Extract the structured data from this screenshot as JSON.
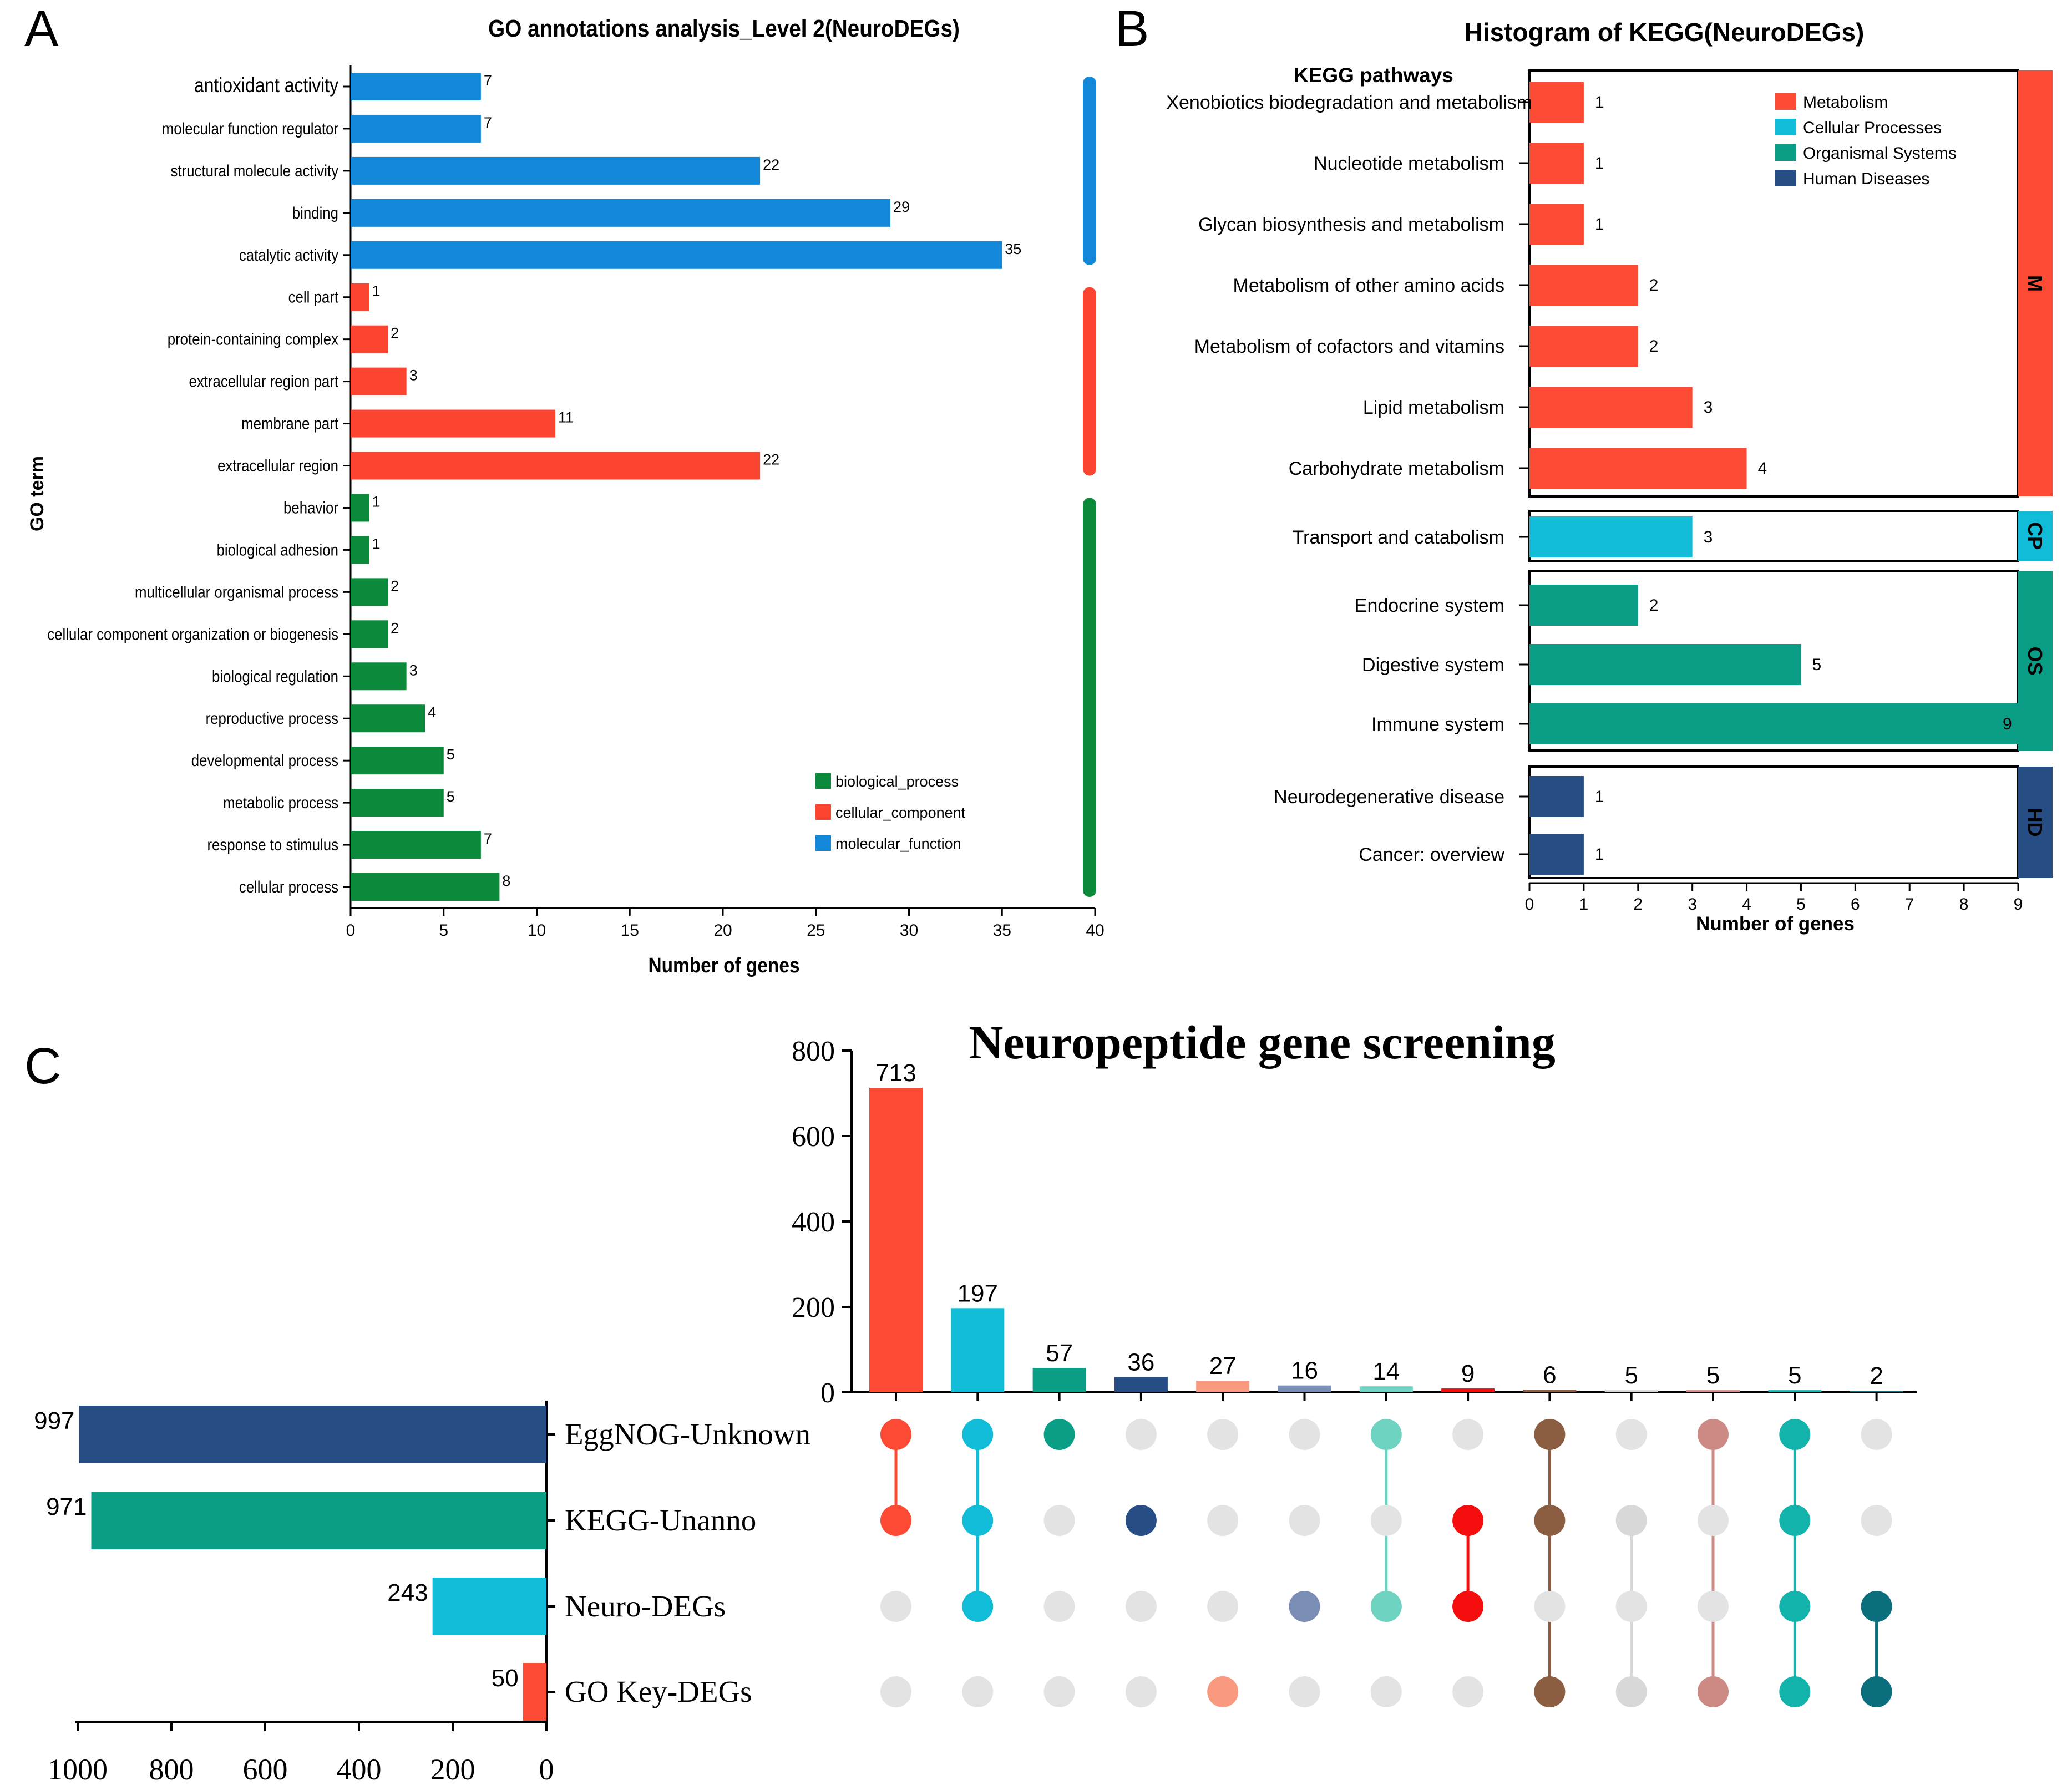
{
  "panel_letters": {
    "a": "A",
    "b": "B",
    "c": "C"
  },
  "colors": {
    "mf": "#1488d8",
    "cc": "#fc4530",
    "bp": "#0a8a3a",
    "metab": "#fc4a34",
    "cp": "#11bcd9",
    "os": "#0b9e86",
    "hd": "#264e85",
    "axis": "#000000",
    "dot_inactive": "#e3e3e3"
  },
  "chart_data": [
    {
      "id": "go",
      "type": "bar",
      "orientation": "horizontal",
      "title": "GO annotations analysis_Level 2(NeuroDEGs)",
      "xlabel": "Number of genes",
      "ylabel": "GO term",
      "xlim": [
        0,
        40
      ],
      "xticks": [
        0,
        5,
        10,
        15,
        20,
        25,
        30,
        35,
        40
      ],
      "categories": [
        "antioxidant activity",
        "molecular function regulator",
        "structural molecule activity",
        "binding",
        "catalytic activity",
        "cell part",
        "protein-containing complex",
        "extracellular region part",
        "membrane part",
        "extracellular region",
        "behavior",
        "biological adhesion",
        "multicellular organismal process",
        "cellular component organization or biogenesis",
        "biological regulation",
        "reproductive process",
        "developmental process",
        "metabolic process",
        "response to stimulus",
        "cellular process"
      ],
      "values": [
        7,
        7,
        22,
        29,
        35,
        1,
        2,
        3,
        11,
        22,
        1,
        1,
        2,
        2,
        3,
        4,
        5,
        5,
        7,
        8
      ],
      "groups": [
        "molecular_function",
        "molecular_function",
        "molecular_function",
        "molecular_function",
        "molecular_function",
        "cellular_component",
        "cellular_component",
        "cellular_component",
        "cellular_component",
        "cellular_component",
        "biological_process",
        "biological_process",
        "biological_process",
        "biological_process",
        "biological_process",
        "biological_process",
        "biological_process",
        "biological_process",
        "biological_process",
        "biological_process"
      ],
      "legend": [
        {
          "key": "biological_process",
          "label": "biological_process",
          "color": "#0a8a3a"
        },
        {
          "key": "cellular_component",
          "label": "cellular_component",
          "color": "#fc4530"
        },
        {
          "key": "molecular_function",
          "label": "molecular_function",
          "color": "#1488d8"
        }
      ],
      "legend_position": "bottom-right"
    },
    {
      "id": "kegg",
      "type": "bar",
      "orientation": "horizontal",
      "title": "Histogram of KEGG(NeuroDEGs)",
      "yaxis_title": "KEGG pathways",
      "xlabel": "Number of genes",
      "xlim": [
        0,
        9
      ],
      "xticks": [
        0,
        1,
        2,
        3,
        4,
        5,
        6,
        7,
        8,
        9
      ],
      "categories": [
        "Xenobiotics biodegradation and metabolism",
        "Nucleotide metabolism",
        "Glycan biosynthesis and metabolism",
        "Metabolism of other amino acids",
        "Metabolism of cofactors and vitamins",
        "Lipid metabolism",
        "Carbohydrate metabolism",
        "Transport and catabolism",
        "Endocrine system",
        "Digestive system",
        "Immune system",
        "Neurodegenerative disease",
        "Cancer: overview"
      ],
      "values": [
        1,
        1,
        1,
        2,
        2,
        3,
        4,
        3,
        2,
        5,
        9,
        1,
        1
      ],
      "groups": [
        "M",
        "M",
        "M",
        "M",
        "M",
        "M",
        "M",
        "CP",
        "OS",
        "OS",
        "OS",
        "HD",
        "HD"
      ],
      "group_labels": [
        "M",
        "CP",
        "OS",
        "HD"
      ],
      "legend": [
        {
          "label": "Metabolism",
          "color": "#fc4a34"
        },
        {
          "label": "Cellular Processes",
          "color": "#11bcd9"
        },
        {
          "label": "Organismal Systems",
          "color": "#0b9e86"
        },
        {
          "label": "Human Diseases",
          "color": "#264e85"
        }
      ],
      "legend_position": "top-right"
    },
    {
      "id": "upset",
      "type": "bar",
      "subtype": "upset",
      "title": "Neuropeptide gene screening",
      "ylim": [
        0,
        800
      ],
      "yticks": [
        0,
        200,
        400,
        600,
        800
      ],
      "sets": [
        "EggNOG-Unknown",
        "KEGG-Unanno",
        "Neuro-DEGs",
        "GO Key-DEGs"
      ],
      "set_sizes": [
        997,
        971,
        243,
        50
      ],
      "set_colors": [
        "#264e85",
        "#0b9e86",
        "#11bcd9",
        "#fc4a34"
      ],
      "set_xlim": [
        0,
        1000
      ],
      "set_xticks": [
        1000,
        800,
        600,
        400,
        200,
        0
      ],
      "intersections": [
        {
          "value": 713,
          "members": [
            0,
            1
          ],
          "color": "#fc4a34"
        },
        {
          "value": 197,
          "members": [
            0,
            1,
            2
          ],
          "color": "#11bcd9"
        },
        {
          "value": 57,
          "members": [
            0
          ],
          "color": "#0b9e86"
        },
        {
          "value": 36,
          "members": [
            1
          ],
          "color": "#264e85"
        },
        {
          "value": 27,
          "members": [
            3
          ],
          "color": "#f99a80"
        },
        {
          "value": 16,
          "members": [
            2
          ],
          "color": "#7a8db5"
        },
        {
          "value": 14,
          "members": [
            0,
            2
          ],
          "color": "#6fd3c2"
        },
        {
          "value": 9,
          "members": [
            1,
            2
          ],
          "color": "#f50e0e"
        },
        {
          "value": 6,
          "members": [
            0,
            1,
            3
          ],
          "color": "#8b5e42"
        },
        {
          "value": 5,
          "members": [
            1,
            3
          ],
          "color": "#d8d8d8"
        },
        {
          "value": 5,
          "members": [
            0,
            3
          ],
          "color": "#cd8a84"
        },
        {
          "value": 5,
          "members": [
            0,
            1,
            2,
            3
          ],
          "color": "#12b3ab"
        },
        {
          "value": 2,
          "members": [
            2,
            3
          ],
          "color": "#0a6e7d"
        }
      ]
    }
  ]
}
